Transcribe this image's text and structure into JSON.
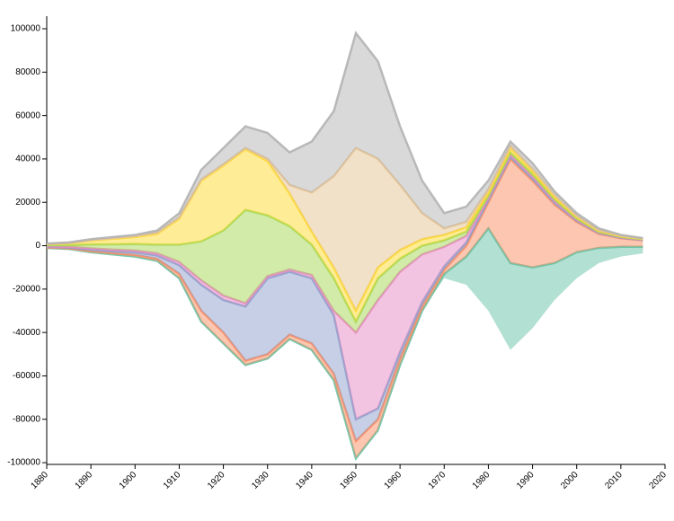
{
  "chart_data": {
    "type": "streamgraph",
    "x": [
      1880,
      1885,
      1890,
      1895,
      1900,
      1905,
      1910,
      1915,
      1920,
      1925,
      1930,
      1935,
      1940,
      1945,
      1950,
      1955,
      1960,
      1965,
      1970,
      1975,
      1980,
      1985,
      1990,
      1995,
      2000,
      2005,
      2010,
      2015
    ],
    "series": [
      {
        "color": "#66c2a5",
        "values": [
          0,
          0,
          0,
          0,
          0,
          0,
          0,
          0,
          0,
          0,
          0,
          0,
          0,
          0,
          0,
          0,
          0,
          0,
          2000,
          13000,
          38000,
          40000,
          28000,
          17000,
          12000,
          7000,
          4500,
          3000
        ]
      },
      {
        "color": "#fc8d62",
        "values": [
          200,
          300,
          500,
          600,
          800,
          1000,
          2000,
          5000,
          5000,
          2000,
          2000,
          2000,
          3000,
          3000,
          8000,
          5000,
          3000,
          2000,
          2000,
          5000,
          12000,
          48000,
          40000,
          27000,
          14000,
          6500,
          4000,
          3000
        ]
      },
      {
        "color": "#8da0cb",
        "values": [
          300,
          400,
          800,
          1000,
          1200,
          1500,
          4000,
          12000,
          15000,
          25000,
          35000,
          29000,
          30000,
          27000,
          10000,
          5000,
          3000,
          2000,
          1500,
          1500,
          1000,
          1000,
          1000,
          800,
          500,
          300,
          200,
          150
        ]
      },
      {
        "color": "#e78ac3",
        "values": [
          200,
          300,
          500,
          600,
          800,
          1000,
          1500,
          2000,
          2000,
          1500,
          1000,
          1000,
          1500,
          2000,
          40000,
          50000,
          37000,
          22000,
          9000,
          3000,
          1000,
          1000,
          1000,
          800,
          500,
          300,
          200,
          150
        ]
      },
      {
        "color": "#a6d854",
        "values": [
          500,
          800,
          1800,
          2500,
          3000,
          4000,
          8000,
          18000,
          30000,
          43000,
          28000,
          20000,
          14000,
          15000,
          5000,
          10000,
          6000,
          4000,
          3000,
          2000,
          1000,
          1000,
          1000,
          800,
          500,
          300,
          200,
          150
        ]
      },
      {
        "color": "#ffd92f",
        "values": [
          500,
          800,
          1800,
          2500,
          3200,
          5000,
          12000,
          28000,
          30000,
          28000,
          25000,
          15000,
          6000,
          5000,
          5000,
          5000,
          4000,
          3000,
          2500,
          2000,
          1500,
          2000,
          1500,
          1200,
          800,
          500,
          300,
          200
        ]
      },
      {
        "color": "#e5c494",
        "values": [
          100,
          100,
          200,
          300,
          400,
          500,
          500,
          500,
          500,
          500,
          1000,
          4000,
          18000,
          42000,
          75000,
          50000,
          30000,
          12000,
          3000,
          2500,
          1500,
          1000,
          1000,
          800,
          500,
          300,
          200,
          150
        ]
      },
      {
        "color": "#b3b3b3",
        "values": [
          200,
          300,
          400,
          500,
          600,
          1000,
          2000,
          4500,
          7500,
          10000,
          12000,
          15000,
          23500,
          30000,
          53000,
          45000,
          27000,
          15000,
          7000,
          7000,
          4000,
          2000,
          2500,
          1600,
          1200,
          800,
          400,
          200
        ]
      }
    ],
    "xlim": [
      1880,
      2020
    ],
    "xticks": [
      1880,
      1890,
      1900,
      1910,
      1920,
      1930,
      1940,
      1950,
      1960,
      1970,
      1980,
      1990,
      2000,
      2010,
      2020
    ],
    "ylim": [
      -100800,
      105800
    ],
    "yticks": [
      -100000,
      -80000,
      -60000,
      -40000,
      -20000,
      0,
      20000,
      40000,
      60000,
      80000,
      100000
    ]
  }
}
